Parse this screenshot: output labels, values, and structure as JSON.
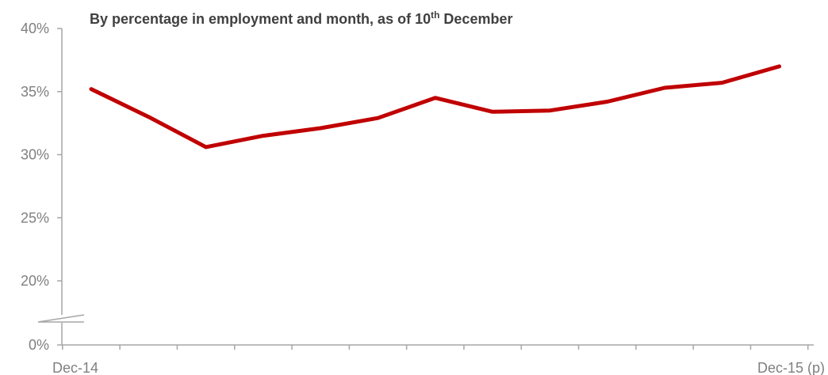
{
  "chart_data": {
    "type": "line",
    "title": {
      "main": "By percentage in employment and month, as of 10",
      "sup": "th",
      "end": " December"
    },
    "xlabel": "",
    "ylabel": "",
    "x_tick_labels": [
      "Dec-14",
      "Dec-15 (p)"
    ],
    "y_ticks": [
      {
        "label": "0%",
        "value": 0
      },
      {
        "label": "20%",
        "value": 20
      },
      {
        "label": "25%",
        "value": 25
      },
      {
        "label": "30%",
        "value": 30
      },
      {
        "label": "35%",
        "value": 35
      },
      {
        "label": "40%",
        "value": 40
      }
    ],
    "y_axis_break": {
      "from": 0,
      "to": 20
    },
    "series": [
      {
        "color": "#c00000",
        "values": [
          35.2,
          33.0,
          30.6,
          31.5,
          32.1,
          32.9,
          34.5,
          33.4,
          33.5,
          34.2,
          35.3,
          35.7,
          37.0
        ]
      }
    ],
    "grid": false,
    "legend": "none"
  }
}
